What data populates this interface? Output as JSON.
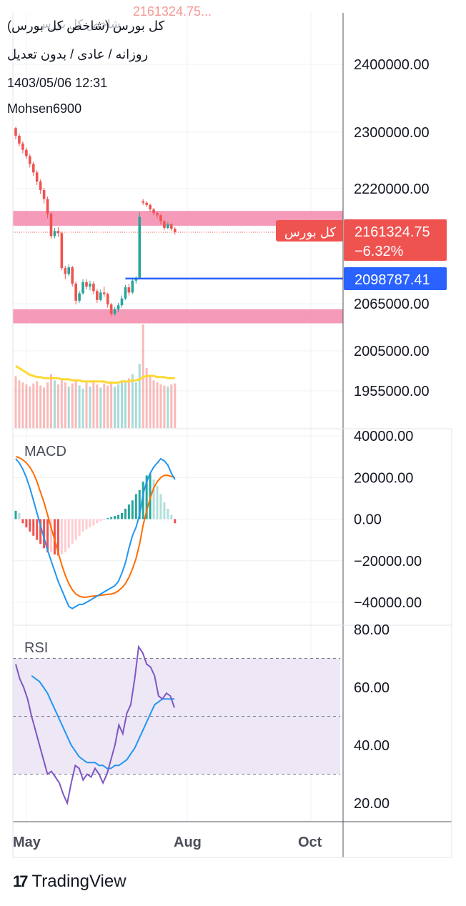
{
  "header": {
    "symbol_title": "کل بورس (شاخص کل بورس)",
    "ghost_title": "شاخص کل بورس",
    "ghost_value": "2161324.75",
    "ghost_ellipsis": "...",
    "timeframe": "روزانه / عادی / بدون تعدیل",
    "datetime": "1403/05/06 12:31",
    "author": "Mohsen6900"
  },
  "brand": {
    "logo_mark": "17",
    "name": "TradingView"
  },
  "colors": {
    "up": "#26a69a",
    "down": "#ef5350",
    "zone": "#f48fb1",
    "level_line": "#2962ff",
    "volume_ma": "#fdd835",
    "macd_line": "#2196f3",
    "signal_line": "#ff6d00",
    "rsi_line": "#7e57c2",
    "rsi_ma": "#2196f3",
    "rsi_band": "#ede7f6"
  },
  "chart_data": [
    {
      "type": "candlestick",
      "name": "price",
      "y_ticks": [
        "2400000.00",
        "2300000.00",
        "2220000.00",
        "2065000.00",
        "2005000.00",
        "1955000.00"
      ],
      "x_ticks": [
        "May",
        "Aug",
        "Oct"
      ],
      "last_price": {
        "label": "کل بورس",
        "value": "2161324.75",
        "change": "−6.32%"
      },
      "horizontal_line": {
        "value": "2098787.41"
      },
      "zones": [
        {
          "from": 2170000,
          "to": 2190000
        },
        {
          "from": 2040000,
          "to": 2058000
        }
      ],
      "candles": [
        [
          2306000,
          2308000,
          2290000,
          2295000
        ],
        [
          2295000,
          2298000,
          2280000,
          2284000
        ],
        [
          2284000,
          2287000,
          2270000,
          2275000
        ],
        [
          2275000,
          2278000,
          2262000,
          2266000
        ],
        [
          2266000,
          2269000,
          2250000,
          2255000
        ],
        [
          2255000,
          2258000,
          2238000,
          2243000
        ],
        [
          2243000,
          2246000,
          2225000,
          2230000
        ],
        [
          2230000,
          2233000,
          2213000,
          2218000
        ],
        [
          2218000,
          2221000,
          2200000,
          2206000
        ],
        [
          2206000,
          2209000,
          2180000,
          2186000
        ],
        [
          2186000,
          2188000,
          2152000,
          2156000
        ],
        [
          2156000,
          2167000,
          2153000,
          2163000
        ],
        [
          2163000,
          2168000,
          2155000,
          2160000
        ],
        [
          2160000,
          2162000,
          2110000,
          2113000
        ],
        [
          2113000,
          2116000,
          2098000,
          2105000
        ],
        [
          2105000,
          2118000,
          2102000,
          2114000
        ],
        [
          2114000,
          2116000,
          2088000,
          2092000
        ],
        [
          2092000,
          2095000,
          2064000,
          2069000
        ],
        [
          2069000,
          2082000,
          2066000,
          2079000
        ],
        [
          2079000,
          2098000,
          2077000,
          2094000
        ],
        [
          2094000,
          2098000,
          2084000,
          2088000
        ],
        [
          2088000,
          2096000,
          2083000,
          2092000
        ],
        [
          2092000,
          2095000,
          2078000,
          2082000
        ],
        [
          2082000,
          2085000,
          2066000,
          2070000
        ],
        [
          2070000,
          2084000,
          2068000,
          2080000
        ],
        [
          2080000,
          2088000,
          2074000,
          2078000
        ],
        [
          2078000,
          2080000,
          2060000,
          2064000
        ],
        [
          2064000,
          2066000,
          2049000,
          2052000
        ],
        [
          2052000,
          2061000,
          2050000,
          2058000
        ],
        [
          2058000,
          2066000,
          2054000,
          2063000
        ],
        [
          2063000,
          2076000,
          2060000,
          2072000
        ],
        [
          2072000,
          2090000,
          2070000,
          2087000
        ],
        [
          2087000,
          2092000,
          2076000,
          2080000
        ],
        [
          2080000,
          2100000,
          2078000,
          2096000
        ],
        [
          2096000,
          2102000,
          2092000,
          2100000
        ],
        [
          2100000,
          2188000,
          2098000,
          2182000
        ],
        [
          2203000,
          2206000,
          2198000,
          2201000
        ],
        [
          2201000,
          2203000,
          2195000,
          2198000
        ],
        [
          2198000,
          2200000,
          2189000,
          2192000
        ],
        [
          2192000,
          2194000,
          2184000,
          2187000
        ],
        [
          2187000,
          2189000,
          2180000,
          2184000
        ],
        [
          2184000,
          2186000,
          2172000,
          2176000
        ],
        [
          2176000,
          2178000,
          2164000,
          2167000
        ],
        [
          2167000,
          2175000,
          2165000,
          2172000
        ],
        [
          2172000,
          2174000,
          2163000,
          2166000
        ],
        [
          2166000,
          2168000,
          2158000,
          2161325
        ]
      ],
      "volume": [
        50,
        46,
        44,
        42,
        40,
        43,
        45,
        41,
        39,
        44,
        52,
        46,
        42,
        48,
        44,
        40,
        43,
        45,
        41,
        38,
        44,
        40,
        46,
        42,
        39,
        43,
        41,
        45,
        40,
        42,
        46,
        44,
        48,
        52,
        44,
        62,
        100,
        58,
        50,
        46,
        44,
        42,
        41,
        40,
        42,
        43
      ],
      "volume_ma": [
        56,
        54,
        52,
        50,
        48,
        47,
        46,
        46,
        45,
        45,
        45,
        45,
        45,
        44,
        44,
        44,
        43,
        43,
        43,
        42,
        42,
        42,
        42,
        42,
        42,
        42,
        41,
        41,
        41,
        41,
        42,
        42,
        42,
        43,
        43,
        44,
        46,
        47,
        47,
        47,
        46,
        46,
        46,
        45,
        45,
        45
      ]
    },
    {
      "type": "macd",
      "label": "MACD",
      "y_ticks": [
        "40000.00",
        "20000.00",
        "0.00",
        "−20000.00",
        "−40000.00"
      ],
      "macd": [
        29000,
        27000,
        24000,
        20000,
        15000,
        9000,
        3000,
        -3000,
        -9000,
        -15000,
        -20000,
        -25000,
        -30000,
        -34000,
        -38000,
        -42000,
        -43000,
        -42000,
        -41000,
        -41000,
        -40000,
        -39000,
        -38000,
        -37000,
        -36000,
        -35000,
        -34000,
        -33000,
        -32000,
        -30000,
        -26000,
        -21000,
        -14000,
        -8000,
        -4000,
        2000,
        12000,
        18000,
        22000,
        25000,
        27000,
        29000,
        28000,
        26000,
        22000,
        19000
      ],
      "signal": [
        30000,
        29500,
        28500,
        27000,
        25000,
        22000,
        18000,
        13000,
        8000,
        2000,
        -4000,
        -10000,
        -16000,
        -22000,
        -27000,
        -31000,
        -34000,
        -36000,
        -37000,
        -37500,
        -37500,
        -37200,
        -37000,
        -36800,
        -36600,
        -36400,
        -36200,
        -36000,
        -35500,
        -34500,
        -33000,
        -31000,
        -28000,
        -24000,
        -19000,
        -12000,
        -3000,
        4000,
        10000,
        15000,
        18000,
        20000,
        21000,
        21000,
        20500,
        20000
      ],
      "histogram": [
        4000,
        3000,
        -2000,
        -4000,
        -6000,
        -8000,
        -10000,
        -12000,
        -14000,
        -16000,
        -16000,
        -17000,
        -17500,
        -17000,
        -16000,
        -14000,
        -12000,
        -10000,
        -8000,
        -6000,
        -5000,
        -4000,
        -3000,
        -2000,
        -1000,
        -500,
        500,
        1000,
        1500,
        2000,
        3000,
        5000,
        7000,
        9000,
        12000,
        14000,
        18000,
        21000,
        22000,
        19000,
        16000,
        12000,
        8000,
        5000,
        2000,
        -2000
      ]
    },
    {
      "type": "rsi",
      "label": "RSI",
      "y_ticks": [
        "80.00",
        "60.00",
        "40.00",
        "20.00"
      ],
      "band": [
        30,
        70
      ],
      "mid": 50,
      "rsi": [
        68,
        63,
        60,
        56,
        50,
        45,
        40,
        35,
        30,
        31,
        29,
        27,
        23,
        20,
        27,
        33,
        32,
        28,
        30,
        29,
        32,
        30,
        27,
        30,
        35,
        40,
        47,
        44,
        51,
        54,
        63,
        74,
        72,
        68,
        67,
        64,
        57,
        56,
        58,
        57,
        53
      ],
      "rsi_ma": [
        64,
        63,
        62,
        60,
        58,
        55,
        52,
        49,
        46,
        43,
        40,
        38,
        36,
        35,
        34,
        34,
        34,
        33,
        33,
        32,
        32,
        33,
        33,
        34,
        35,
        37,
        39,
        42,
        45,
        48,
        51,
        54,
        55,
        56,
        56,
        56,
        56
      ]
    }
  ]
}
